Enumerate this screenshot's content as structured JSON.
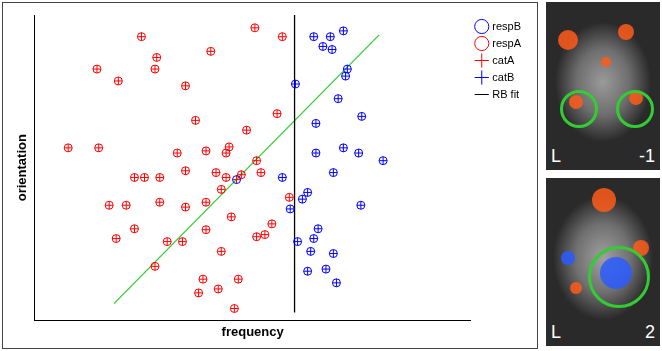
{
  "chart_data": {
    "type": "scatter",
    "x_label": "frequency",
    "y_label": "orientation",
    "xlim": [
      0,
      100
    ],
    "ylim": [
      0,
      100
    ],
    "tick_labels": false,
    "grid": false,
    "legend": "right",
    "series": [
      {
        "name": "respB",
        "color": "#0000ff",
        "marker": "circle",
        "type": "scatter",
        "x": [
          64.0,
          67.8,
          70.8,
          66.1,
          68.2,
          71.7,
          71.3,
          59.8,
          69.6,
          64.5,
          75.0,
          79.9,
          74.3,
          70.8,
          64.5,
          68.5,
          62.6,
          74.8,
          61.4,
          58.6,
          56.8,
          65.0,
          64.0,
          60.3,
          63.3,
          68.5,
          66.8,
          62.6,
          69.2,
          46.3
        ],
        "y": [
          92.9,
          92.9,
          94.8,
          89.7,
          88.7,
          82.3,
          80.0,
          77.4,
          72.6,
          64.5,
          66.8,
          52.3,
          54.8,
          56.5,
          54.8,
          48.4,
          41.9,
          37.7,
          39.7,
          36.5,
          46.8,
          30.0,
          26.8,
          25.8,
          22.6,
          21.9,
          16.8,
          16.1,
          12.3,
          46.1
        ]
      },
      {
        "name": "respA",
        "color": "#ff0000",
        "marker": "circle",
        "type": "scatter",
        "x": [
          24.5,
          50.5,
          56.8,
          14.3,
          28.0,
          27.6,
          40.4,
          19.2,
          34.6,
          7.7,
          14.7,
          36.9,
          55.6,
          48.6,
          44.6,
          22.9,
          25.2,
          28.7,
          32.7,
          34.6,
          39.3,
          43.9,
          17.1,
          21.0,
          50.9,
          51.9,
          41.6,
          47.4,
          43.9,
          42.8,
          39.3,
          34.6,
          45.1,
          28.7,
          39.3,
          50.9,
          54.4,
          22.9,
          18.7,
          30.4,
          33.9,
          27.6,
          38.6,
          37.6,
          46.7,
          45.8,
          42.1,
          52.8,
          42.8,
          58.4
        ],
        "y": [
          92.9,
          95.8,
          92.9,
          82.3,
          86.1,
          82.3,
          88.1,
          78.4,
          76.8,
          56.5,
          56.5,
          65.5,
          67.7,
          62.3,
          56.8,
          46.8,
          46.8,
          46.8,
          54.8,
          49.0,
          55.5,
          54.8,
          37.7,
          37.7,
          52.3,
          48.4,
          48.4,
          47.7,
          46.8,
          42.9,
          38.7,
          37.1,
          33.9,
          38.7,
          29.7,
          27.4,
          31.6,
          30.0,
          26.8,
          25.8,
          25.8,
          17.7,
          13.5,
          9.0,
          13.5,
          3.9,
          10.3,
          28.1,
          22.6,
          40.3
        ]
      },
      {
        "name": "catA",
        "color": "#ff0000",
        "marker": "plus",
        "type": "scatter",
        "x": [
          24.5,
          50.5,
          56.8,
          14.3,
          28.0,
          27.6,
          40.4,
          19.2,
          34.6,
          7.7,
          14.7,
          36.9,
          55.6,
          48.6,
          44.6,
          22.9,
          25.2,
          28.7,
          32.7,
          34.6,
          39.3,
          43.9,
          17.1,
          21.0,
          50.9,
          51.9,
          41.6,
          47.4,
          43.9,
          42.8,
          39.3,
          34.6,
          45.1,
          28.7,
          39.3,
          50.9,
          54.4,
          22.9,
          18.7,
          30.4,
          33.9,
          27.6,
          38.6,
          37.6,
          46.7,
          45.8,
          42.1,
          52.8,
          42.8,
          58.4,
          46.3
        ],
        "y": [
          92.9,
          95.8,
          92.9,
          82.3,
          86.1,
          82.3,
          88.1,
          78.4,
          76.8,
          56.5,
          56.5,
          65.5,
          67.7,
          62.3,
          56.8,
          46.8,
          46.8,
          46.8,
          54.8,
          49.0,
          55.5,
          54.8,
          37.7,
          37.7,
          52.3,
          48.4,
          48.4,
          47.7,
          46.8,
          42.9,
          38.7,
          37.1,
          33.9,
          38.7,
          29.7,
          27.4,
          31.6,
          30.0,
          26.8,
          25.8,
          25.8,
          17.7,
          13.5,
          9.0,
          13.5,
          3.9,
          10.3,
          28.1,
          22.6,
          40.3,
          46.1
        ]
      },
      {
        "name": "catB",
        "color": "#0000ff",
        "marker": "plus",
        "type": "scatter",
        "x": [
          64.0,
          67.8,
          70.8,
          66.1,
          68.2,
          71.7,
          71.3,
          59.8,
          69.6,
          64.5,
          75.0,
          79.9,
          74.3,
          70.8,
          64.5,
          68.5,
          62.6,
          74.8,
          61.4,
          58.6,
          56.8,
          65.0,
          64.0,
          60.3,
          63.3,
          68.5,
          66.8,
          62.6,
          69.2
        ],
        "y": [
          92.9,
          92.9,
          94.8,
          89.7,
          88.7,
          82.3,
          80.0,
          77.4,
          72.6,
          64.5,
          66.8,
          52.3,
          54.8,
          56.5,
          54.8,
          48.4,
          41.9,
          37.7,
          39.7,
          36.5,
          46.8,
          30.0,
          26.8,
          25.8,
          22.6,
          21.9,
          16.8,
          16.1,
          12.3
        ]
      },
      {
        "name": "RB fit",
        "color": "#000000",
        "type": "line",
        "line_style": "solid",
        "x": [
          59.6,
          59.6
        ],
        "y": [
          2.6,
          100
        ]
      },
      {
        "color": "#33cc33",
        "type": "line",
        "line_style": "solid",
        "x": [
          18.2,
          79.0
        ],
        "y": [
          5.5,
          93.5
        ]
      }
    ]
  },
  "images": [
    {
      "left_label": "L",
      "right_label": "-1"
    },
    {
      "left_label": "L",
      "right_label": "2"
    }
  ]
}
